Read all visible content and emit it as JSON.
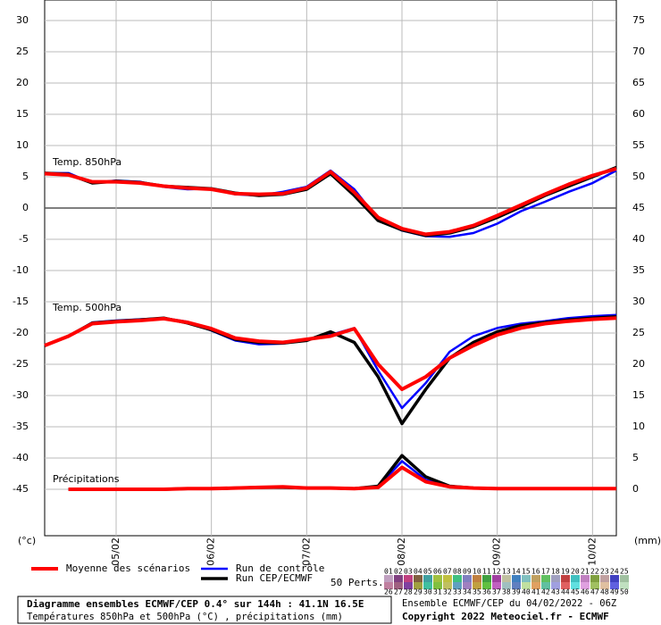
{
  "chart_data": {
    "type": "line",
    "annotations": [
      "Temp. 850hPa",
      "Temp. 500hPa",
      "Précipitations"
    ],
    "y_label": "(°c)",
    "y2_label": "(mm)",
    "x": [
      0,
      6,
      12,
      18,
      24,
      30,
      36,
      42,
      48,
      54,
      60,
      66,
      72,
      78,
      84,
      90,
      96,
      102,
      108,
      114,
      120,
      126,
      132,
      138,
      144
    ],
    "xlim": [
      0,
      144
    ],
    "xticks": [
      {
        "value": 18,
        "label": "05/02"
      },
      {
        "value": 42,
        "label": "06/02"
      },
      {
        "value": 66,
        "label": "07/02"
      },
      {
        "value": 90,
        "label": "08/02"
      },
      {
        "value": 114,
        "label": "09/02"
      },
      {
        "value": 138,
        "label": "10/02"
      }
    ],
    "ylim": [
      -52.43,
      33.29
    ],
    "yticks": [
      -45,
      -40,
      -35,
      -30,
      -25,
      -20,
      -15,
      -10,
      -5,
      0,
      5,
      10,
      15,
      20,
      25,
      30
    ],
    "y2lim": [
      -7.43,
      78.29
    ],
    "y2ticks": [
      0,
      5,
      10,
      15,
      20,
      25,
      30,
      35,
      40,
      45,
      50,
      55,
      60,
      65,
      70,
      75
    ],
    "grid": true,
    "series": [
      {
        "name": "Run de contrôle",
        "color": "#0000ff",
        "width": 2.5,
        "temp850": [
          5.6,
          5.6,
          4.0,
          4.4,
          4.2,
          3.4,
          3.0,
          3.1,
          2.2,
          2.0,
          2.6,
          3.4,
          6.0,
          3.0,
          -1.8,
          -3.6,
          -4.5,
          -4.6,
          -4.0,
          -2.5,
          -0.5,
          1.0,
          2.6,
          4.0,
          6.0
        ],
        "temp500": [
          -22,
          -20.6,
          -18.3,
          -18.0,
          -17.8,
          -17.6,
          -18.2,
          -19.6,
          -21.2,
          -21.8,
          -21.7,
          -21.0,
          -20.3,
          -19.2,
          -26,
          -32,
          -28,
          -23,
          -20.5,
          -19.2,
          -18.5,
          -18.1,
          -17.6,
          -17.3,
          -17.1
        ],
        "precip": [
          null,
          0,
          0,
          0,
          0,
          0,
          0.1,
          0.1,
          0.2,
          0.3,
          0.3,
          0.2,
          0.2,
          0.1,
          0.4,
          4.5,
          1.5,
          0.4,
          0.2,
          0.1,
          0.1,
          0.1,
          0.1,
          0.1,
          0.1
        ]
      },
      {
        "name": "Run CEP/ECMWF",
        "color": "#000000",
        "width": 3.5,
        "temp850": [
          5.6,
          5.4,
          4.0,
          4.3,
          4.1,
          3.5,
          3.3,
          3.1,
          2.4,
          2.0,
          2.2,
          3.0,
          5.5,
          2.0,
          -2.0,
          -3.5,
          -4.4,
          -4.0,
          -3.0,
          -1.5,
          0.2,
          2.0,
          3.5,
          5.0,
          6.5
        ],
        "temp500": [
          -22,
          -20.5,
          -18.4,
          -18.1,
          -17.9,
          -17.6,
          -18.4,
          -19.5,
          -21,
          -21.5,
          -21.6,
          -21.2,
          -19.8,
          -21.5,
          -27,
          -34.5,
          -29,
          -24,
          -21.5,
          -19.8,
          -18.8,
          -18.3,
          -17.9,
          -17.6,
          -17.4
        ],
        "precip": [
          null,
          0,
          0,
          0,
          0,
          0,
          0.1,
          0.1,
          0.2,
          0.3,
          0.3,
          0.2,
          0.2,
          0.1,
          0.5,
          5.4,
          2.0,
          0.5,
          0.2,
          0.1,
          0.1,
          0.1,
          0.1,
          0.1,
          0.1
        ]
      },
      {
        "name": "Moyenne des scénarios",
        "color": "#ff0000",
        "width": 4,
        "temp850": [
          5.5,
          5.3,
          4.2,
          4.2,
          4.0,
          3.5,
          3.2,
          3.0,
          2.3,
          2.2,
          2.3,
          3.2,
          5.8,
          2.5,
          -1.5,
          -3.3,
          -4.2,
          -3.8,
          -2.8,
          -1.2,
          0.5,
          2.2,
          3.8,
          5.2,
          6.3
        ],
        "temp500": [
          -22,
          -20.5,
          -18.5,
          -18.2,
          -18,
          -17.7,
          -18.3,
          -19.3,
          -20.8,
          -21.3,
          -21.5,
          -21,
          -20.5,
          -19.3,
          -25,
          -29,
          -27,
          -24,
          -22,
          -20.3,
          -19.2,
          -18.5,
          -18.1,
          -17.8,
          -17.6
        ],
        "precip": [
          null,
          0,
          0,
          0,
          0,
          0,
          0.1,
          0.1,
          0.2,
          0.3,
          0.4,
          0.2,
          0.2,
          0.1,
          0.3,
          3.5,
          1.2,
          0.4,
          0.2,
          0.1,
          0.1,
          0.1,
          0.1,
          0.1,
          0.1
        ]
      }
    ],
    "perturbations": {
      "label": "50 Perts.",
      "ids": [
        "01",
        "02",
        "03",
        "04",
        "05",
        "06",
        "07",
        "08",
        "09",
        "10",
        "11",
        "12",
        "13",
        "14",
        "15",
        "16",
        "17",
        "18",
        "19",
        "20",
        "21",
        "22",
        "23",
        "24",
        "25",
        "26",
        "27",
        "28",
        "29",
        "30",
        "31",
        "32",
        "33",
        "34",
        "35",
        "36",
        "37",
        "38",
        "39",
        "40",
        "41",
        "42",
        "43",
        "44",
        "45",
        "46",
        "47",
        "48",
        "49",
        "50"
      ],
      "colors": [
        "#c0a0c0",
        "#804080",
        "#c04080",
        "#806040",
        "#40a0a0",
        "#a0c040",
        "#c0c040",
        "#40c080",
        "#8080c0",
        "#c08040",
        "#40a040",
        "#a040a0",
        "#c0c0a0",
        "#4080c0",
        "#80c0c0",
        "#c0a060",
        "#60c060",
        "#a0a0c0",
        "#c04040",
        "#40c0c0",
        "#c080c0",
        "#80a040",
        "#c0a0a0",
        "#4040c0",
        "#a0c0a0",
        "#c080a0",
        "#a06080",
        "#8040a0",
        "#a0a040",
        "#40c0a0",
        "#80c040",
        "#c0c060",
        "#60a0c0",
        "#a080c0",
        "#c0a040",
        "#60c040",
        "#c060c0",
        "#a0c0c0",
        "#6080c0",
        "#c0e0a0",
        "#e0a060",
        "#60c0a0",
        "#a0a0e0",
        "#e06060",
        "#60e0e0",
        "#e0a0e0",
        "#a0c060",
        "#e0c0a0",
        "#6060e0",
        "#c0e0c0"
      ]
    },
    "footer": {
      "title": "Diagramme ensembles ECMWF/CEP 0.4° sur 144h : 41.1N 16.5E",
      "subtitle": "Températures 850hPa et 500hPa (°C) , précipitations (mm)",
      "run": "Ensemble ECMWF/CEP du 04/02/2022 - 06Z",
      "copyright": "Copyright 2022 Meteociel.fr - ECMWF"
    }
  }
}
